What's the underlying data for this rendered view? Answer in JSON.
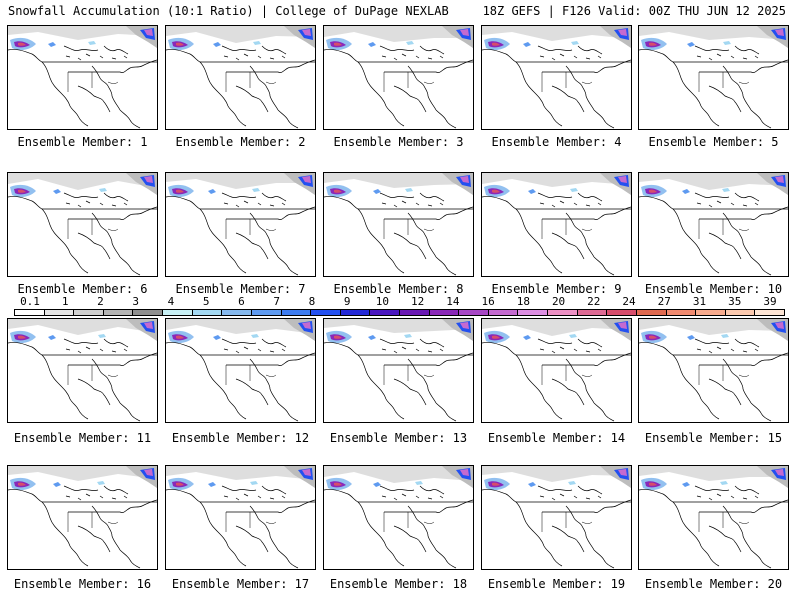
{
  "header": {
    "left_text": "Snowfall Accumulation (10:1 Ratio) | College of DuPage NEXLAB",
    "right_text": "18Z GEFS | F126 Valid: 00Z THU JUN 12 2025"
  },
  "legend": {
    "labels": [
      "0.1",
      "1",
      "2",
      "3",
      "4",
      "5",
      "6",
      "7",
      "8",
      "9",
      "10",
      "12",
      "14",
      "16",
      "18",
      "20",
      "22",
      "24",
      "27",
      "31",
      "35",
      "39"
    ],
    "colors": [
      "#ffffff",
      "#e6e6e6",
      "#cfcfcf",
      "#b4b4b4",
      "#8f8f8f",
      "#c8f0f5",
      "#a3d8f2",
      "#86b9ee",
      "#5e9af0",
      "#3d7cf0",
      "#2350f0",
      "#2328d6",
      "#4a17c0",
      "#6a19b4",
      "#8a28b8",
      "#a848c6",
      "#c46ad0",
      "#dc8ee2",
      "#ec90c4",
      "#dd6a94",
      "#d64d6c",
      "#e06a50",
      "#f08a70",
      "#f7ab8e",
      "#fbc9af",
      "#fde5d5"
    ]
  },
  "members": [
    {
      "label": "Ensemble Member: 1"
    },
    {
      "label": "Ensemble Member: 2"
    },
    {
      "label": "Ensemble Member: 3"
    },
    {
      "label": "Ensemble Member: 4"
    },
    {
      "label": "Ensemble Member: 5"
    },
    {
      "label": "Ensemble Member: 6"
    },
    {
      "label": "Ensemble Member: 7"
    },
    {
      "label": "Ensemble Member: 8"
    },
    {
      "label": "Ensemble Member: 9"
    },
    {
      "label": "Ensemble Member: 10"
    },
    {
      "label": "Ensemble Member: 11"
    },
    {
      "label": "Ensemble Member: 12"
    },
    {
      "label": "Ensemble Member: 13"
    },
    {
      "label": "Ensemble Member: 14"
    },
    {
      "label": "Ensemble Member: 15"
    },
    {
      "label": "Ensemble Member: 16"
    },
    {
      "label": "Ensemble Member: 17"
    },
    {
      "label": "Ensemble Member: 18"
    },
    {
      "label": "Ensemble Member: 19"
    },
    {
      "label": "Ensemble Member: 20"
    }
  ]
}
